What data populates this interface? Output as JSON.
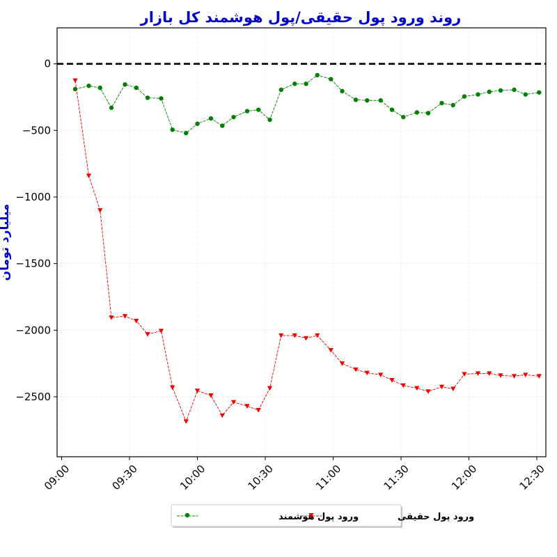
{
  "chart_data": {
    "type": "line",
    "title": "روند ورود پول حقیقی/پول هوشمند کل بازار",
    "xlabel": "",
    "ylabel": "میلیارد تومان",
    "x_ticks": [
      "09:00",
      "09:30",
      "10:00",
      "10:30",
      "11:00",
      "11:30",
      "12:00",
      "12:30"
    ],
    "y_ticks": [
      0,
      -500,
      -1000,
      -1500,
      -2000,
      -2500
    ],
    "y_tick_labels": [
      "0",
      "−500",
      "−1000",
      "−1500",
      "−2000",
      "−2500"
    ],
    "ylim": [
      -2950,
      270
    ],
    "xlim": [
      "08:58",
      "12:34"
    ],
    "grid": true,
    "reference_line": 0,
    "legend_position": "bottom-center",
    "x": [
      "09:06",
      "09:12",
      "09:17",
      "09:22",
      "09:28",
      "09:33",
      "09:38",
      "09:44",
      "09:49",
      "09:55",
      "10:00",
      "10:06",
      "10:11",
      "10:16",
      "10:22",
      "10:27",
      "10:32",
      "10:37",
      "10:43",
      "10:48",
      "10:53",
      "10:59",
      "11:04",
      "11:10",
      "11:15",
      "11:21",
      "11:26",
      "11:31",
      "11:37",
      "11:42",
      "11:48",
      "11:53",
      "11:58",
      "12:04",
      "12:09",
      "12:14",
      "12:20",
      "12:25",
      "12:31"
    ],
    "series": [
      {
        "name": "ورود پول هوشمند",
        "color": "#008000",
        "marker": "circle",
        "values": [
          -190,
          -165,
          -180,
          -330,
          -155,
          -180,
          -255,
          -260,
          -495,
          -520,
          -450,
          -410,
          -465,
          -400,
          -355,
          -345,
          -420,
          -195,
          -150,
          -150,
          -85,
          -115,
          -205,
          -270,
          -275,
          -275,
          -345,
          -400,
          -365,
          -370,
          -295,
          -310,
          -245,
          -230,
          -210,
          -200,
          -195,
          -230,
          -215
        ]
      },
      {
        "name": "ورود پول حقیقی",
        "color": "#ee0000",
        "marker": "triangle-down",
        "values": [
          -125,
          -840,
          -1100,
          -1905,
          -1895,
          -1930,
          -2030,
          -2005,
          -2430,
          -2685,
          -2455,
          -2490,
          -2640,
          -2540,
          -2570,
          -2600,
          -2435,
          -2040,
          -2040,
          -2060,
          -2040,
          -2150,
          -2250,
          -2295,
          -2320,
          -2335,
          -2375,
          -2415,
          -2435,
          -2460,
          -2425,
          -2440,
          -2330,
          -2325,
          -2325,
          -2340,
          -2345,
          -2335,
          -2345
        ]
      }
    ]
  }
}
